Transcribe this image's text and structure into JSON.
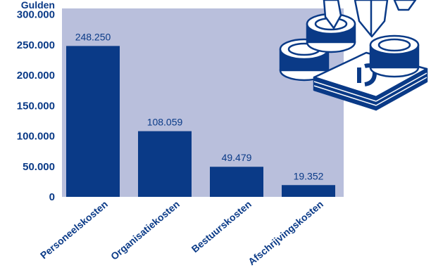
{
  "chart_data": {
    "type": "bar",
    "unit_label": "Gulden",
    "categories": [
      "Personeelskosten",
      "Organisatiekosten",
      "Bestuurskosten",
      "Afschrijvingskosten"
    ],
    "values": [
      248250,
      108059,
      49479,
      19352
    ],
    "value_labels": [
      "248.250",
      "108.059",
      "49.479",
      "19.352"
    ],
    "yticks": [
      0,
      50000,
      100000,
      150000,
      200000,
      250000,
      300000
    ],
    "ytick_labels": [
      "0",
      "50.000",
      "100.000",
      "150.000",
      "200.000",
      "250.000",
      "300.000"
    ],
    "ylim": [
      0,
      310000
    ],
    "grid": false,
    "colors": {
      "bar": "#0a3a87",
      "plot_background": "#b9bfdc",
      "text": "#0a3a87",
      "illustration_stroke": "#0a3a87",
      "illustration_fill": "#ffffff"
    },
    "illustration": "coins-and-banknotes-icon"
  }
}
